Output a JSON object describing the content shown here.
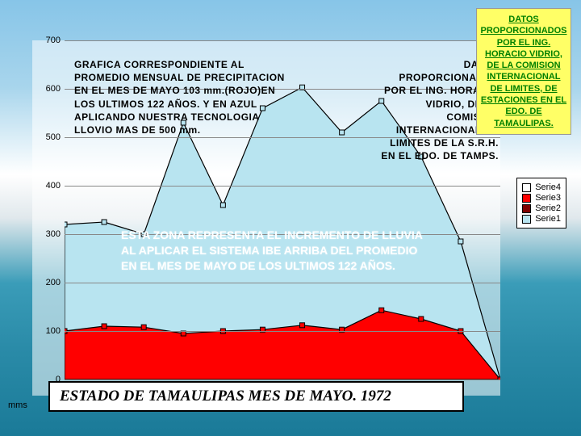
{
  "background": {
    "sky_top": "#87c5e8",
    "cloud": "#ffffff",
    "sea_mid": "#3a9cb8",
    "sea_bottom": "#1a7a98"
  },
  "chart": {
    "type": "area",
    "plot_background": "rgba(255,255,255,0.55)",
    "grid_color": "#888888",
    "ylim": [
      0,
      700
    ],
    "ytick_step": 100,
    "yticks": [
      0,
      100,
      200,
      300,
      400,
      500,
      600,
      700
    ],
    "x_axis_unit": "mms",
    "categories_count": 12,
    "series": {
      "serie4": {
        "label": "Serie4",
        "color": "#ffffff",
        "stroke": "#000000"
      },
      "serie3": {
        "label": "Serie3",
        "color": "#ff0000",
        "stroke": "#000000",
        "values": [
          100,
          110,
          108,
          95,
          100,
          103,
          112,
          103,
          143,
          125,
          100,
          0
        ]
      },
      "serie2": {
        "label": "Serie2",
        "color": "#800000",
        "stroke": "#000000"
      },
      "serie1": {
        "label": "Serie1",
        "color": "#b8e4f0",
        "stroke": "#000000",
        "values": [
          320,
          325,
          300,
          530,
          360,
          560,
          603,
          510,
          575,
          460,
          285,
          0
        ]
      }
    }
  },
  "text": {
    "desc_left": "GRAFICA CORRESPONDIENTE AL PROMEDIO MENSUAL DE PRECIPITACION EN EL MES DE MAYO 103 mm.(ROJO)EN LOS ULTIMOS 122 AÑOS. Y EN AZUL APLICANDO NUESTRA TECNOLOGIA LLOVIO MAS DE 500 mm.",
    "desc_right": "DATOS PROPORCIONADOS POR EL ING. HORACIO VIDRIO, DE LA COMISION INTERNACIONAL DE LIMITES DE LA S.R.H. EN EL EDO. DE TAMPS.",
    "overlay": "ESTA ZONA REPRESENTA EL INCREMENTO DE LLUVIA AL APLICAR EL SISTEMA IBE ARRIBA DEL PROMEDIO EN EL MES DE MAYO DE LOS ULTIMOS 122 AÑOS.",
    "yellow_note": "DATOS PROPORCIONADOS POR EL ING. HORACIO VIDRIO, DE LA COMISION INTERNACIONAL DE LIMITES, DE ESTACIONES EN EL EDO. DE TAMAULIPAS.",
    "bottom_banner": "ESTADO DE TAMAULIPAS MES DE MAYO. 1972"
  },
  "legend_order": [
    "serie4",
    "serie3",
    "serie2",
    "serie1"
  ],
  "fonts": {
    "desc_size": 12,
    "overlay_size": 14,
    "legend_size": 11,
    "banner_size": 19
  }
}
